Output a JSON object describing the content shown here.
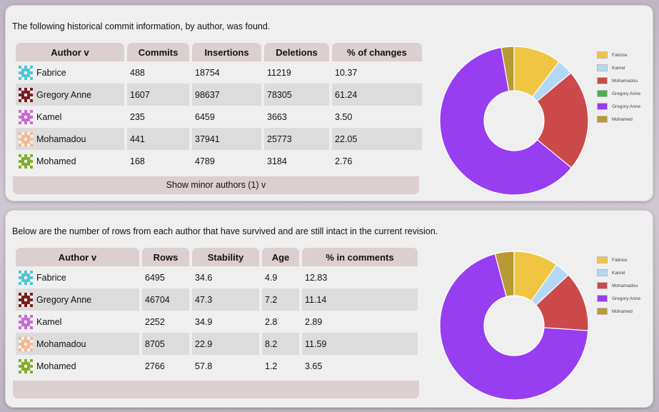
{
  "commits_panel": {
    "intro": "The following historical commit information, by author, was found.",
    "headers": [
      "Author v",
      "Commits",
      "Insertions",
      "Deletions",
      "% of changes"
    ],
    "rows": [
      {
        "author": "Fabrice",
        "avatar_color": "#4fc6d9",
        "commits": "488",
        "insertions": "18754",
        "deletions": "11219",
        "percent": "10.37"
      },
      {
        "author": "Gregory Anne",
        "avatar_color": "#7b1d1d",
        "commits": "1607",
        "insertions": "98637",
        "deletions": "78305",
        "percent": "61.24"
      },
      {
        "author": "Kamel",
        "avatar_color": "#c66bd6",
        "commits": "235",
        "insertions": "6459",
        "deletions": "3663",
        "percent": "3.50"
      },
      {
        "author": "Mohamadou",
        "avatar_color": "#f2b993",
        "commits": "441",
        "insertions": "37941",
        "deletions": "25773",
        "percent": "22.05"
      },
      {
        "author": "Mohamed",
        "avatar_color": "#7fb02b",
        "commits": "168",
        "insertions": "4789",
        "deletions": "3184",
        "percent": "2.76"
      }
    ],
    "footer": "Show minor authors (1) v"
  },
  "rows_panel": {
    "intro": "Below are the number of rows from each author that have survived and are still intact in the current revision.",
    "headers": [
      "Author v",
      "Rows",
      "Stability",
      "Age",
      "% in comments"
    ],
    "rows": [
      {
        "author": "Fabrice",
        "avatar_color": "#4fc6d9",
        "rows": "6495",
        "stability": "34.6",
        "age": "4.9",
        "comments": "12.83"
      },
      {
        "author": "Gregory Anne",
        "avatar_color": "#7b1d1d",
        "rows": "46704",
        "stability": "47.3",
        "age": "7.2",
        "comments": "11.14"
      },
      {
        "author": "Kamel",
        "avatar_color": "#c66bd6",
        "rows": "2252",
        "stability": "34.9",
        "age": "2.8",
        "comments": "2.89"
      },
      {
        "author": "Mohamadou",
        "avatar_color": "#f2b993",
        "rows": "8705",
        "stability": "22.9",
        "age": "8.2",
        "comments": "11.59"
      },
      {
        "author": "Mohamed",
        "avatar_color": "#7fb02b",
        "rows": "2766",
        "stability": "57.8",
        "age": "1.2",
        "comments": "3.65"
      }
    ]
  },
  "chart_data": [
    {
      "type": "pie",
      "donut": true,
      "categories": [
        "Fabrice",
        "Kamel",
        "Mohamadou",
        "Gregory Anne",
        "Gregory Anne",
        "Mohamed"
      ],
      "values": [
        10.37,
        3.5,
        22.05,
        0,
        61.24,
        2.76
      ],
      "colors": [
        "#f0c542",
        "#b3d8f5",
        "#cc4a4a",
        "#4caf50",
        "#963ef0",
        "#b89a34"
      ],
      "legend_position": "right"
    },
    {
      "type": "pie",
      "donut": true,
      "categories": [
        "Fabrice",
        "Kamel",
        "Mohamadou",
        "Gregory Anne",
        "Mohamed"
      ],
      "values": [
        6495,
        2252,
        8705,
        46704,
        2766
      ],
      "colors": [
        "#f0c542",
        "#b3d8f5",
        "#cc4a4a",
        "#963ef0",
        "#b89a34"
      ],
      "legend_position": "right"
    }
  ]
}
